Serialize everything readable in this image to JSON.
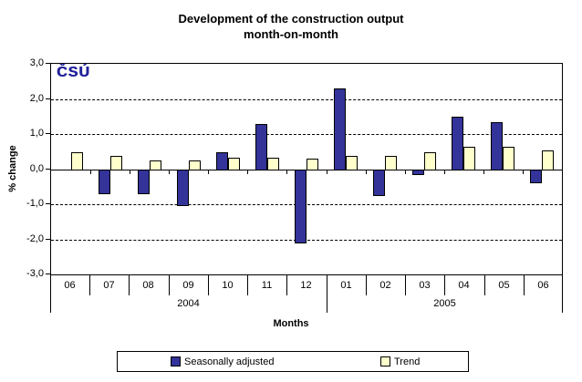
{
  "title": {
    "line1": "Development of the construction output",
    "line2": "month-on-month"
  },
  "logo": {
    "text": "ČSÚ"
  },
  "y_axis": {
    "label": "% change",
    "ticks": [
      "3,0",
      "2,0",
      "1,0",
      "0,0",
      "-1,0",
      "-2,0",
      "-3,0"
    ],
    "values": [
      3,
      2,
      1,
      0,
      -1,
      -2,
      -3
    ]
  },
  "x_axis": {
    "label": "Months"
  },
  "legend": {
    "items": [
      {
        "label": "Seasonally adjusted",
        "color": "#333399"
      },
      {
        "label": "Trend",
        "color": "#ffffcc"
      }
    ]
  },
  "colors": {
    "seasonal_bar": "#333399",
    "trend_bar": "#ffffcc",
    "bar_border": "#000000",
    "logo_blue": "#22229b",
    "axis": "#000000",
    "background": "#ffffff"
  },
  "chart_data": {
    "type": "bar",
    "title": "Development of the construction output month-on-month",
    "categories": [
      "06",
      "07",
      "08",
      "09",
      "10",
      "11",
      "12",
      "01",
      "02",
      "03",
      "04",
      "05",
      "06"
    ],
    "category_groups": [
      {
        "label": "2004",
        "count": 7
      },
      {
        "label": "2005",
        "count": 6
      }
    ],
    "series": [
      {
        "name": "Seasonally adjusted",
        "color": "#333399",
        "values": [
          0,
          -0.7,
          -0.7,
          -1.05,
          0.5,
          1.3,
          -2.1,
          2.3,
          -0.75,
          -0.15,
          1.5,
          1.35,
          -0.4
        ]
      },
      {
        "name": "Trend",
        "color": "#ffffcc",
        "values": [
          0.5,
          0.4,
          0.25,
          0.25,
          0.35,
          0.35,
          0.3,
          0.4,
          0.4,
          0.5,
          0.65,
          0.65,
          0.55
        ]
      }
    ],
    "xlabel": "Months",
    "ylabel": "% change",
    "ylim": [
      -3,
      3
    ],
    "ytick_step": 1,
    "grid": "dashed-horizontal",
    "zero_line": "solid",
    "legend_position": "bottom"
  }
}
